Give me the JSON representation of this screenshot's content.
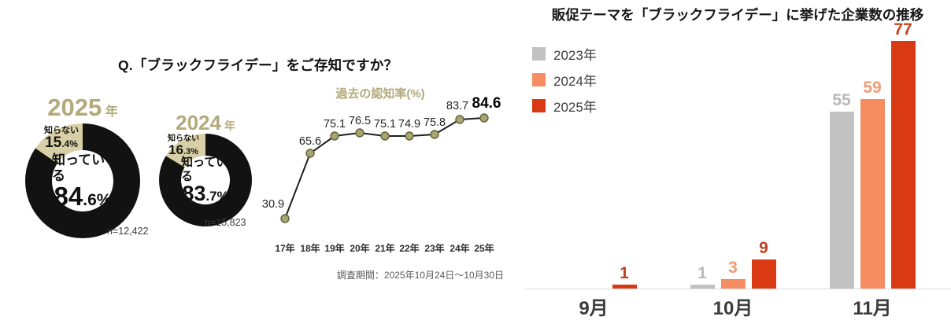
{
  "left": {
    "title": "Q.「ブラックフライデー」をご存知ですか？",
    "donuts": [
      {
        "year": "2025",
        "year_suffix": "年",
        "know_label": "知っている",
        "know_main": "84",
        "know_sub": ".6%",
        "know_pct": 84.6,
        "dontknow_label": "知らない",
        "dontknow_main": "15",
        "dontknow_sub": ".4%",
        "n_label": "n=12,422"
      },
      {
        "year": "2024",
        "year_suffix": "年",
        "know_label": "知っている",
        "know_main": "83",
        "know_sub": ".7%",
        "know_pct": 83.7,
        "dontknow_label": "知らない",
        "dontknow_main": "16",
        "dontknow_sub": ".3%",
        "n_label": "n=15,823"
      }
    ]
  },
  "trend": {
    "title": "過去の認知率(%)",
    "note": "調査期間：2025年10月24日～10月30日"
  },
  "companies": {
    "title": "販促テーマを「ブラックフライデー」に挙げた企業数の推移",
    "legend": [
      {
        "label": "2023年"
      },
      {
        "label": "2024年"
      },
      {
        "label": "2025年"
      }
    ]
  },
  "chart_data": [
    {
      "type": "pie",
      "title": "2025年",
      "labels": [
        "知っている",
        "知らない"
      ],
      "values": [
        84.6,
        15.4
      ],
      "n": "n=12,422"
    },
    {
      "type": "pie",
      "title": "2024年",
      "labels": [
        "知っている",
        "知らない"
      ],
      "values": [
        83.7,
        16.3
      ],
      "n": "n=15,823"
    },
    {
      "type": "line",
      "title": "過去の認知率(%)",
      "categories": [
        "17年",
        "18年",
        "19年",
        "20年",
        "21年",
        "22年",
        "23年",
        "24年",
        "25年"
      ],
      "values": [
        30.9,
        65.6,
        75.1,
        76.5,
        75.1,
        74.9,
        75.8,
        83.7,
        84.6
      ],
      "note": "調査期間：2025年10月24日～10月30日",
      "grid": false,
      "ylim": [
        25,
        95
      ]
    },
    {
      "type": "bar",
      "title": "販促テーマを「ブラックフライデー」に挙げた企業数の推移",
      "categories": [
        "9月",
        "10月",
        "11月"
      ],
      "series": [
        {
          "name": "2023年",
          "values": [
            0,
            1,
            55
          ]
        },
        {
          "name": "2024年",
          "values": [
            0,
            3,
            59
          ]
        },
        {
          "name": "2025年",
          "values": [
            1,
            9,
            77
          ]
        }
      ],
      "legend_position": "upper-left",
      "grid": false
    }
  ],
  "colors": {
    "donut_know": "#121212",
    "donut_dontknow": "#d7cfa7",
    "khaki_text": "#b3aa7b",
    "line": "#1f1f1f",
    "marker_fill": "#a7a671",
    "marker_stroke": "#61613a",
    "value_label": "#262626",
    "series": [
      "#c2c2c2",
      "#f68d62",
      "#da3a13"
    ],
    "series_labels": [
      "#b9b9b9",
      "#ef9a72",
      "#c5401c"
    ],
    "axis_line": "#dcdcdc"
  }
}
